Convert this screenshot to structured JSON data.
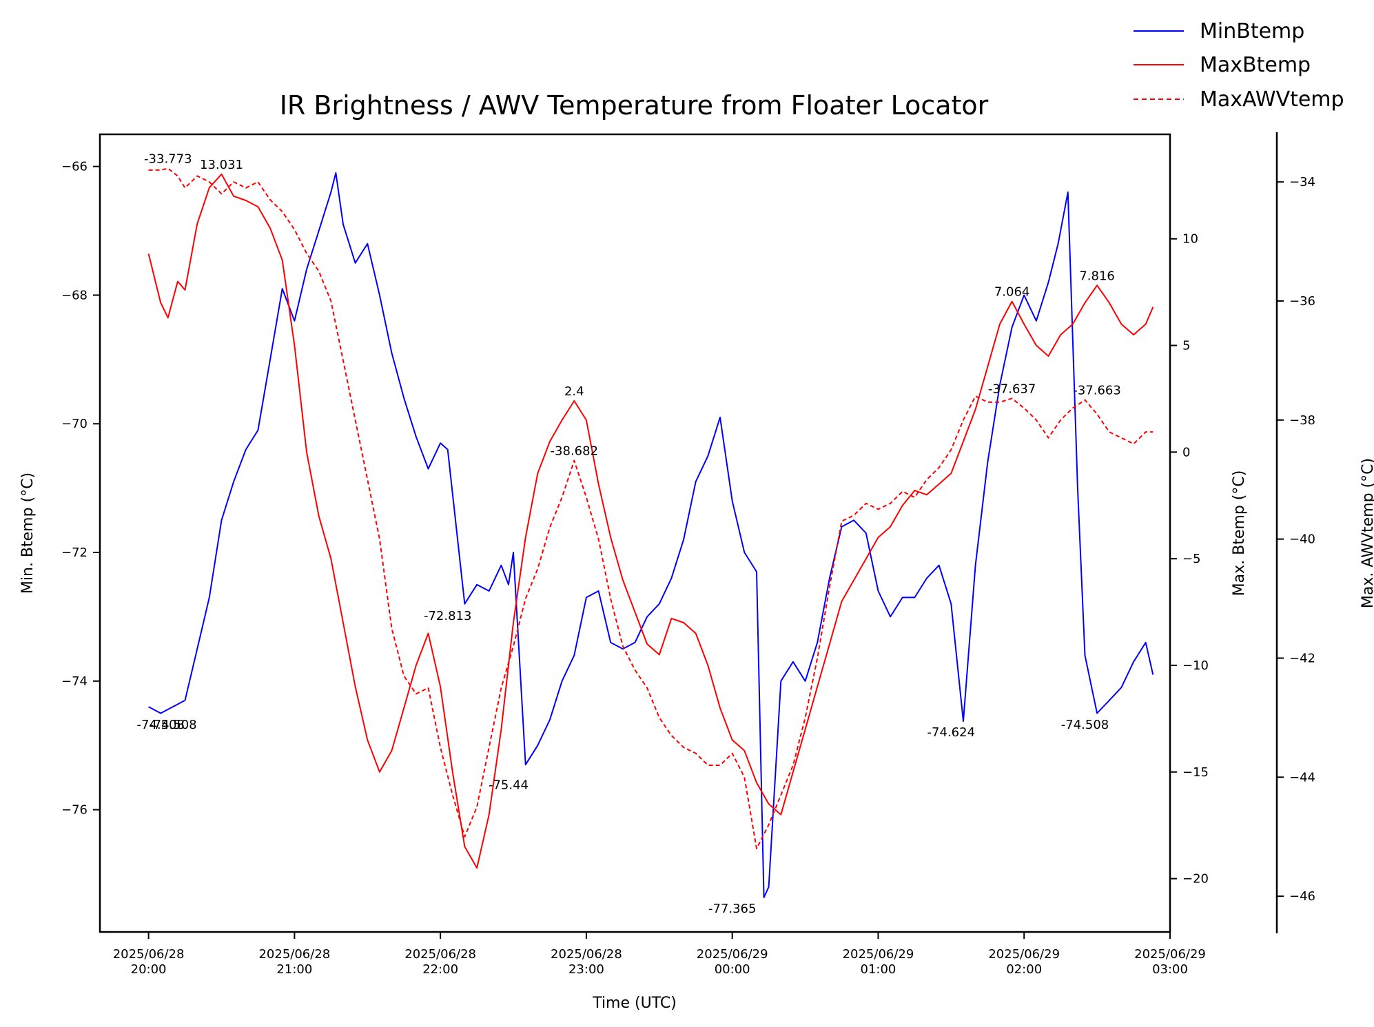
{
  "chart_data": {
    "type": "line",
    "title": "IR Brightness / AWV Temperature from Floater Locator",
    "xlabel": "Time (UTC)",
    "x_range": [
      "2025-06-28T19:40",
      "2025-06-29T03:00"
    ],
    "x_ticks": [
      {
        "t": "2025-06-28T20:00",
        "line1": "2025/06/28",
        "line2": "20:00"
      },
      {
        "t": "2025-06-28T21:00",
        "line1": "2025/06/28",
        "line2": "21:00"
      },
      {
        "t": "2025-06-28T22:00",
        "line1": "2025/06/28",
        "line2": "22:00"
      },
      {
        "t": "2025-06-28T23:00",
        "line1": "2025/06/28",
        "line2": "23:00"
      },
      {
        "t": "2025-06-29T00:00",
        "line1": "2025/06/29",
        "line2": "00:00"
      },
      {
        "t": "2025-06-29T01:00",
        "line1": "2025/06/29",
        "line2": "01:00"
      },
      {
        "t": "2025-06-29T02:00",
        "line1": "2025/06/29",
        "line2": "02:00"
      },
      {
        "t": "2025-06-29T03:00",
        "line1": "2025/06/29",
        "line2": "03:00"
      }
    ],
    "axes": {
      "left": {
        "label": "Min. Btemp (°C)",
        "range": [
          -77.9,
          -65.5
        ],
        "ticks": [
          -66,
          -68,
          -70,
          -72,
          -74,
          -76
        ],
        "tick_labels": [
          "−66",
          "−68",
          "−70",
          "−72",
          "−74",
          "−76"
        ]
      },
      "right1": {
        "label": "Max. Btemp (°C)",
        "range": [
          -22.5,
          14.9
        ],
        "ticks": [
          10,
          5,
          0,
          -5,
          -10,
          -15,
          -20
        ],
        "tick_labels": [
          "10",
          "5",
          "0",
          "−5",
          "−10",
          "−15",
          "−20"
        ]
      },
      "right2": {
        "label": "Max. AWVtemp (°C)",
        "range": [
          -46.6,
          -33.2
        ],
        "ticks": [
          -34,
          -36,
          -38,
          -40,
          -42,
          -44,
          -46
        ],
        "tick_labels": [
          "−34",
          "−36",
          "−38",
          "−40",
          "−42",
          "−44",
          "−46"
        ]
      }
    },
    "legend": {
      "placement": "top-right outside",
      "entries": [
        "MinBtemp",
        "MaxBtemp",
        "MaxAWVtemp"
      ]
    },
    "grid": false,
    "series": [
      {
        "name": "MinBtemp",
        "axis": "left",
        "color": "#0000ff",
        "dash": "solid",
        "x": [
          "2025-06-28T20:00",
          "2025-06-28T20:05",
          "2025-06-28T20:10",
          "2025-06-28T20:15",
          "2025-06-28T20:20",
          "2025-06-28T20:25",
          "2025-06-28T20:30",
          "2025-06-28T20:35",
          "2025-06-28T20:40",
          "2025-06-28T20:45",
          "2025-06-28T20:50",
          "2025-06-28T20:55",
          "2025-06-28T21:00",
          "2025-06-28T21:05",
          "2025-06-28T21:10",
          "2025-06-28T21:15",
          "2025-06-28T21:17",
          "2025-06-28T21:20",
          "2025-06-28T21:25",
          "2025-06-28T21:30",
          "2025-06-28T21:35",
          "2025-06-28T21:40",
          "2025-06-28T21:45",
          "2025-06-28T21:50",
          "2025-06-28T21:55",
          "2025-06-28T22:00",
          "2025-06-28T22:03",
          "2025-06-28T22:10",
          "2025-06-28T22:15",
          "2025-06-28T22:20",
          "2025-06-28T22:25",
          "2025-06-28T22:28",
          "2025-06-28T22:30",
          "2025-06-28T22:35",
          "2025-06-28T22:40",
          "2025-06-28T22:45",
          "2025-06-28T22:50",
          "2025-06-28T22:55",
          "2025-06-28T23:00",
          "2025-06-28T23:05",
          "2025-06-28T23:10",
          "2025-06-28T23:15",
          "2025-06-28T23:20",
          "2025-06-28T23:25",
          "2025-06-28T23:30",
          "2025-06-28T23:35",
          "2025-06-28T23:40",
          "2025-06-28T23:45",
          "2025-06-28T23:50",
          "2025-06-28T23:55",
          "2025-06-29T00:00",
          "2025-06-29T00:05",
          "2025-06-29T00:10",
          "2025-06-29T00:13",
          "2025-06-29T00:15",
          "2025-06-29T00:20",
          "2025-06-29T00:25",
          "2025-06-29T00:30",
          "2025-06-29T00:35",
          "2025-06-29T00:40",
          "2025-06-29T00:45",
          "2025-06-29T00:50",
          "2025-06-29T00:55",
          "2025-06-29T01:00",
          "2025-06-29T01:05",
          "2025-06-29T01:10",
          "2025-06-29T01:15",
          "2025-06-29T01:20",
          "2025-06-29T01:25",
          "2025-06-29T01:30",
          "2025-06-29T01:35",
          "2025-06-29T01:40",
          "2025-06-29T01:45",
          "2025-06-29T01:50",
          "2025-06-29T01:55",
          "2025-06-29T02:00",
          "2025-06-29T02:05",
          "2025-06-29T02:10",
          "2025-06-29T02:14",
          "2025-06-29T02:18",
          "2025-06-29T02:22",
          "2025-06-29T02:25",
          "2025-06-29T02:30",
          "2025-06-29T02:35",
          "2025-06-29T02:40",
          "2025-06-29T02:45",
          "2025-06-29T02:50",
          "2025-06-29T02:53"
        ],
        "y": [
          -74.4,
          -74.5,
          -74.4,
          -74.3,
          -73.5,
          -72.7,
          -71.5,
          -70.9,
          -70.4,
          -70.1,
          -69.0,
          -67.9,
          -68.4,
          -67.6,
          -67.0,
          -66.4,
          -66.1,
          -66.9,
          -67.5,
          -67.2,
          -68.0,
          -68.9,
          -69.6,
          -70.2,
          -70.7,
          -70.3,
          -70.4,
          -72.8,
          -72.5,
          -72.6,
          -72.2,
          -72.5,
          -72.0,
          -75.3,
          -75.0,
          -74.6,
          -74.0,
          -73.6,
          -72.7,
          -72.6,
          -73.4,
          -73.5,
          -73.4,
          -73.0,
          -72.8,
          -72.4,
          -71.8,
          -70.9,
          -70.5,
          -69.9,
          -71.2,
          -72.0,
          -72.3,
          -77.365,
          -77.2,
          -74.0,
          -73.7,
          -74.0,
          -73.4,
          -72.4,
          -71.6,
          -71.5,
          -71.7,
          -72.6,
          -73.0,
          -72.7,
          -72.7,
          -72.4,
          -72.2,
          -72.8,
          -74.624,
          -72.2,
          -70.6,
          -69.4,
          -68.5,
          -68.0,
          -68.4,
          -67.8,
          -67.2,
          -66.4,
          -71.0,
          -73.6,
          -74.5,
          -74.3,
          -74.1,
          -73.7,
          -73.4,
          -73.9
        ]
      },
      {
        "name": "MaxBtemp",
        "axis": "right1",
        "color": "#ff0000",
        "dash": "solid",
        "x": [
          "2025-06-28T20:00",
          "2025-06-28T20:05",
          "2025-06-28T20:08",
          "2025-06-28T20:12",
          "2025-06-28T20:15",
          "2025-06-28T20:20",
          "2025-06-28T20:25",
          "2025-06-28T20:30",
          "2025-06-28T20:35",
          "2025-06-28T20:40",
          "2025-06-28T20:45",
          "2025-06-28T20:50",
          "2025-06-28T20:55",
          "2025-06-28T21:00",
          "2025-06-28T21:05",
          "2025-06-28T21:10",
          "2025-06-28T21:15",
          "2025-06-28T21:20",
          "2025-06-28T21:25",
          "2025-06-28T21:30",
          "2025-06-28T21:35",
          "2025-06-28T21:40",
          "2025-06-28T21:45",
          "2025-06-28T21:50",
          "2025-06-28T21:55",
          "2025-06-28T22:00",
          "2025-06-28T22:05",
          "2025-06-28T22:10",
          "2025-06-28T22:15",
          "2025-06-28T22:20",
          "2025-06-28T22:25",
          "2025-06-28T22:30",
          "2025-06-28T22:35",
          "2025-06-28T22:40",
          "2025-06-28T22:45",
          "2025-06-28T22:50",
          "2025-06-28T22:55",
          "2025-06-28T23:00",
          "2025-06-28T23:05",
          "2025-06-28T23:10",
          "2025-06-28T23:15",
          "2025-06-28T23:20",
          "2025-06-28T23:25",
          "2025-06-28T23:30",
          "2025-06-28T23:35",
          "2025-06-28T23:40",
          "2025-06-28T23:45",
          "2025-06-28T23:50",
          "2025-06-28T23:55",
          "2025-06-29T00:00",
          "2025-06-29T00:05",
          "2025-06-29T00:10",
          "2025-06-29T00:15",
          "2025-06-29T00:20",
          "2025-06-29T00:25",
          "2025-06-29T00:30",
          "2025-06-29T00:35",
          "2025-06-29T00:40",
          "2025-06-29T00:45",
          "2025-06-29T00:50",
          "2025-06-29T00:55",
          "2025-06-29T01:00",
          "2025-06-29T01:05",
          "2025-06-29T01:10",
          "2025-06-29T01:15",
          "2025-06-29T01:20",
          "2025-06-29T01:25",
          "2025-06-29T01:30",
          "2025-06-29T01:35",
          "2025-06-29T01:40",
          "2025-06-29T01:45",
          "2025-06-29T01:50",
          "2025-06-29T01:55",
          "2025-06-29T02:00",
          "2025-06-29T02:05",
          "2025-06-29T02:10",
          "2025-06-29T02:15",
          "2025-06-29T02:20",
          "2025-06-29T02:25",
          "2025-06-29T02:30",
          "2025-06-29T02:35",
          "2025-06-29T02:40",
          "2025-06-29T02:45",
          "2025-06-29T02:50",
          "2025-06-29T02:53"
        ],
        "y": [
          9.3,
          7.0,
          6.3,
          8.0,
          7.6,
          10.7,
          12.4,
          13.031,
          12.0,
          11.8,
          11.5,
          10.5,
          9.0,
          5.0,
          0.0,
          -3.0,
          -5.0,
          -8.0,
          -11.0,
          -13.5,
          -15.0,
          -14.0,
          -12.0,
          -10.0,
          -8.5,
          -11.0,
          -15.0,
          -18.5,
          -19.5,
          -17.0,
          -13.0,
          -8.0,
          -4.0,
          -1.0,
          0.5,
          1.5,
          2.4,
          1.5,
          -1.5,
          -4.0,
          -6.0,
          -7.5,
          -9.0,
          -9.5,
          -7.8,
          -8.0,
          -8.5,
          -10.0,
          -12.0,
          -13.5,
          -14.0,
          -15.5,
          -16.5,
          -17.0,
          -15.0,
          -13.0,
          -11.0,
          -9.0,
          -7.0,
          -6.0,
          -5.0,
          -4.0,
          -3.5,
          -2.5,
          -1.8,
          -2.0,
          -1.5,
          -1.0,
          0.5,
          2.0,
          4.0,
          6.0,
          7.064,
          6.0,
          5.0,
          4.5,
          5.5,
          6.0,
          7.0,
          7.816,
          7.0,
          6.0,
          5.5,
          6.0,
          6.8
        ]
      },
      {
        "name": "MaxAWVtemp",
        "axis": "right2",
        "color": "#ff0000",
        "dash": "dashed",
        "x": [
          "2025-06-28T20:00",
          "2025-06-28T20:05",
          "2025-06-28T20:08",
          "2025-06-28T20:12",
          "2025-06-28T20:15",
          "2025-06-28T20:20",
          "2025-06-28T20:25",
          "2025-06-28T20:30",
          "2025-06-28T20:35",
          "2025-06-28T20:40",
          "2025-06-28T20:45",
          "2025-06-28T20:50",
          "2025-06-28T20:55",
          "2025-06-28T21:00",
          "2025-06-28T21:05",
          "2025-06-28T21:10",
          "2025-06-28T21:15",
          "2025-06-28T21:20",
          "2025-06-28T21:25",
          "2025-06-28T21:30",
          "2025-06-28T21:35",
          "2025-06-28T21:40",
          "2025-06-28T21:45",
          "2025-06-28T21:50",
          "2025-06-28T21:55",
          "2025-06-28T22:00",
          "2025-06-28T22:05",
          "2025-06-28T22:10",
          "2025-06-28T22:15",
          "2025-06-28T22:20",
          "2025-06-28T22:25",
          "2025-06-28T22:30",
          "2025-06-28T22:35",
          "2025-06-28T22:40",
          "2025-06-28T22:45",
          "2025-06-28T22:50",
          "2025-06-28T22:55",
          "2025-06-28T23:00",
          "2025-06-28T23:05",
          "2025-06-28T23:10",
          "2025-06-28T23:15",
          "2025-06-28T23:20",
          "2025-06-28T23:25",
          "2025-06-28T23:30",
          "2025-06-28T23:35",
          "2025-06-28T23:40",
          "2025-06-28T23:45",
          "2025-06-28T23:50",
          "2025-06-28T23:55",
          "2025-06-29T00:00",
          "2025-06-29T00:05",
          "2025-06-29T00:10",
          "2025-06-29T00:15",
          "2025-06-29T00:20",
          "2025-06-29T00:25",
          "2025-06-29T00:30",
          "2025-06-29T00:35",
          "2025-06-29T00:40",
          "2025-06-29T00:45",
          "2025-06-29T00:50",
          "2025-06-29T00:55",
          "2025-06-29T01:00",
          "2025-06-29T01:05",
          "2025-06-29T01:10",
          "2025-06-29T01:15",
          "2025-06-29T01:20",
          "2025-06-29T01:25",
          "2025-06-29T01:30",
          "2025-06-29T01:35",
          "2025-06-29T01:40",
          "2025-06-29T01:45",
          "2025-06-29T01:50",
          "2025-06-29T01:55",
          "2025-06-29T02:00",
          "2025-06-29T02:05",
          "2025-06-29T02:10",
          "2025-06-29T02:15",
          "2025-06-29T02:20",
          "2025-06-29T02:25",
          "2025-06-29T02:30",
          "2025-06-29T02:35",
          "2025-06-29T02:40",
          "2025-06-29T02:45",
          "2025-06-29T02:50",
          "2025-06-29T02:53"
        ],
        "y": [
          -33.8,
          -33.8,
          -33.773,
          -33.9,
          -34.1,
          -33.9,
          -34.0,
          -34.2,
          -34.0,
          -34.1,
          -34.0,
          -34.3,
          -34.5,
          -34.8,
          -35.2,
          -35.5,
          -36.0,
          -37.0,
          -38.0,
          -39.0,
          -40.0,
          -41.5,
          -42.3,
          -42.6,
          -42.5,
          -43.5,
          -44.3,
          -45.0,
          -44.5,
          -43.5,
          -42.5,
          -41.8,
          -41.0,
          -40.5,
          -39.8,
          -39.3,
          -38.682,
          -39.3,
          -40.0,
          -41.0,
          -41.8,
          -42.2,
          -42.5,
          -43.0,
          -43.3,
          -43.5,
          -43.6,
          -43.8,
          -43.8,
          -43.6,
          -44.0,
          -45.2,
          -44.8,
          -44.3,
          -43.8,
          -43.0,
          -42.0,
          -40.8,
          -39.7,
          -39.6,
          -39.4,
          -39.5,
          -39.4,
          -39.2,
          -39.3,
          -39.0,
          -38.8,
          -38.5,
          -38.0,
          -37.6,
          -37.7,
          -37.7,
          -37.637,
          -37.8,
          -38.0,
          -38.3,
          -38.0,
          -37.8,
          -37.663,
          -37.9,
          -38.2,
          -38.3,
          -38.4,
          -38.2,
          -38.2
        ]
      }
    ],
    "annotations": [
      {
        "text": "-33.773",
        "series": "MaxAWVtemp",
        "x": "2025-06-28T20:08",
        "y": -33.773
      },
      {
        "text": "13.031",
        "series": "MaxBtemp",
        "x": "2025-06-28T20:30",
        "y": 13.031
      },
      {
        "text": "-74.508",
        "series": "MinBtemp",
        "x": "2025-06-28T20:05",
        "y": -74.508
      },
      {
        "text": "-74.508",
        "series": "MinBtemp",
        "x": "2025-06-28T20:10",
        "y": -74.508
      },
      {
        "text": "-72.813",
        "series": "MinBtemp",
        "x": "2025-06-28T22:03",
        "y": -72.813
      },
      {
        "text": "-75.44",
        "series": "MinBtemp",
        "x": "2025-06-28T22:28",
        "y": -75.44
      },
      {
        "text": "2.4",
        "series": "MaxBtemp",
        "x": "2025-06-28T22:55",
        "y": 2.4
      },
      {
        "text": "-38.682",
        "series": "MaxAWVtemp",
        "x": "2025-06-28T22:55",
        "y": -38.682
      },
      {
        "text": "-77.365",
        "series": "MinBtemp",
        "x": "2025-06-29T00:00",
        "y": -77.365
      },
      {
        "text": "-74.624",
        "series": "MinBtemp",
        "x": "2025-06-29T01:30",
        "y": -74.624
      },
      {
        "text": "7.064",
        "series": "MaxBtemp",
        "x": "2025-06-29T01:55",
        "y": 7.064
      },
      {
        "text": "-37.637",
        "series": "MaxAWVtemp",
        "x": "2025-06-29T01:55",
        "y": -37.637
      },
      {
        "text": "-74.508",
        "series": "MinBtemp",
        "x": "2025-06-29T02:25",
        "y": -74.508
      },
      {
        "text": "-37.663",
        "series": "MaxAWVtemp",
        "x": "2025-06-29T02:30",
        "y": -37.663
      },
      {
        "text": "7.816",
        "series": "MaxBtemp",
        "x": "2025-06-29T02:30",
        "y": 7.816
      }
    ]
  }
}
